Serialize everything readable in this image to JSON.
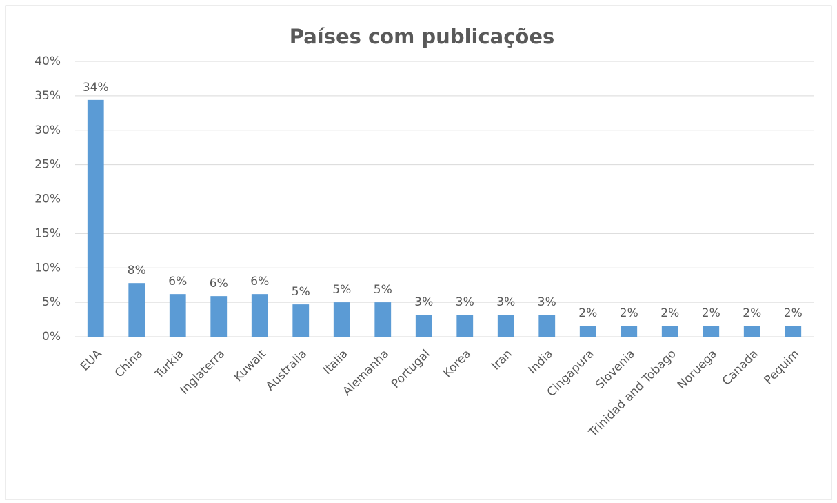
{
  "chart_data": {
    "type": "bar",
    "title": "Países com publicações",
    "categories": [
      "EUA",
      "China",
      "Turkia",
      "Inglaterra",
      "Kuwait",
      "Australia",
      "Italia",
      "Alemanha",
      "Portugal",
      "Korea",
      "Iran",
      "India",
      "Cingapura",
      "Slovenia",
      "Trinidad and Tobago",
      "Noruega",
      "Canada",
      "Pequim"
    ],
    "values": [
      34.4,
      7.8,
      6.2,
      5.9,
      6.2,
      4.7,
      5.0,
      5.0,
      3.2,
      3.2,
      3.2,
      3.2,
      1.6,
      1.6,
      1.6,
      1.6,
      1.6,
      1.6
    ],
    "value_labels": [
      "34%",
      "8%",
      "6%",
      "6%",
      "6%",
      "5%",
      "5%",
      "5%",
      "3%",
      "3%",
      "3%",
      "3%",
      "2%",
      "2%",
      "2%",
      "2%",
      "2%",
      "2%"
    ],
    "color": "#5b9bd5",
    "ylim": [
      0,
      40
    ],
    "yticks": [
      {
        "value": 0,
        "label": "0%"
      },
      {
        "value": 5,
        "label": "5%"
      },
      {
        "value": 10,
        "label": "10%"
      },
      {
        "value": 15,
        "label": "15%"
      },
      {
        "value": 20,
        "label": "20%"
      },
      {
        "value": 25,
        "label": "25%"
      },
      {
        "value": 30,
        "label": "30%"
      },
      {
        "value": 35,
        "label": "35%"
      },
      {
        "value": 40,
        "label": "40%"
      }
    ],
    "grid": true
  }
}
